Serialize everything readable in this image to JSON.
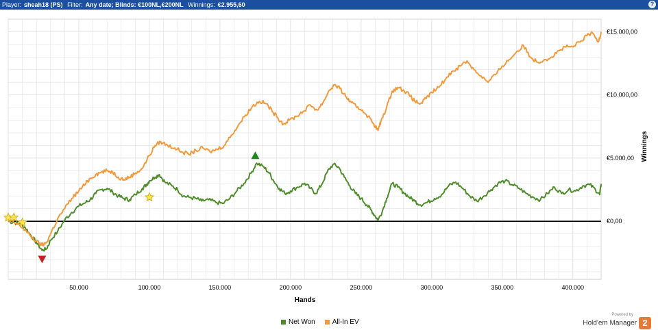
{
  "header": {
    "player_label": "Player:",
    "player_value": "sheah18 (PS)",
    "filter_label": "Filter:",
    "filter_value": "Any date; Blinds: €100NL,€200NL",
    "winnings_label": "Winnings:",
    "winnings_value": "€2.955,60",
    "help_icon": "?"
  },
  "legend": {
    "net_won": "Net Won",
    "all_in_ev": "All-In EV"
  },
  "brand": {
    "powered_by": "Powered by",
    "name": "Hold'em Manager",
    "logo_digit": "2"
  },
  "colors": {
    "net_won": "#4e8c2a",
    "all_in_ev": "#f3993b",
    "zero_line": "#000000",
    "grid": "#e2e2e2",
    "header": "#1c4fa0",
    "star": "#ffe44d",
    "up_marker": "#1a8a1a",
    "down_marker": "#cc2020"
  },
  "chart_data": {
    "type": "line",
    "xlabel": "Hands",
    "ylabel": "Winnings",
    "xlim": [
      0,
      420000
    ],
    "ylim": [
      -4600,
      16000
    ],
    "x_ticks": [
      50000,
      100000,
      150000,
      200000,
      250000,
      300000,
      350000,
      400000
    ],
    "x_tick_labels": [
      "50.000",
      "100.000",
      "150.000",
      "200.000",
      "250.000",
      "300.000",
      "350.000",
      "400.000"
    ],
    "y_ticks": [
      0,
      5000,
      10000,
      15000
    ],
    "y_tick_labels": [
      "€0,00",
      "€5.000,00",
      "€10.000,00",
      "€15.000,00"
    ],
    "grid": true,
    "legend_position": "bottom-center",
    "series": [
      {
        "name": "Net Won",
        "color": "#4e8c2a",
        "points": [
          [
            0,
            0
          ],
          [
            4000,
            -100
          ],
          [
            8000,
            -200
          ],
          [
            12000,
            -500
          ],
          [
            16000,
            -1100
          ],
          [
            20000,
            -1700
          ],
          [
            24000,
            -2300
          ],
          [
            27000,
            -2200
          ],
          [
            30000,
            -1500
          ],
          [
            35000,
            -800
          ],
          [
            40000,
            100
          ],
          [
            45000,
            700
          ],
          [
            50000,
            1200
          ],
          [
            55000,
            1500
          ],
          [
            58000,
            1700
          ],
          [
            62000,
            2200
          ],
          [
            66000,
            2500
          ],
          [
            70000,
            2600
          ],
          [
            74000,
            2300
          ],
          [
            78000,
            2000
          ],
          [
            82000,
            1800
          ],
          [
            86000,
            1700
          ],
          [
            90000,
            2100
          ],
          [
            95000,
            2600
          ],
          [
            98000,
            2900
          ],
          [
            100000,
            3200
          ],
          [
            104000,
            3500
          ],
          [
            107000,
            3700
          ],
          [
            111000,
            3100
          ],
          [
            116000,
            2800
          ],
          [
            120000,
            2500
          ],
          [
            124000,
            2000
          ],
          [
            128000,
            1900
          ],
          [
            133000,
            1800
          ],
          [
            137000,
            1600
          ],
          [
            142000,
            1700
          ],
          [
            147000,
            1500
          ],
          [
            152000,
            1400
          ],
          [
            157000,
            1800
          ],
          [
            162000,
            2400
          ],
          [
            167000,
            3000
          ],
          [
            172000,
            3800
          ],
          [
            176000,
            4600
          ],
          [
            181000,
            4300
          ],
          [
            185000,
            3800
          ],
          [
            188000,
            3200
          ],
          [
            192000,
            2600
          ],
          [
            196000,
            2200
          ],
          [
            200000,
            2400
          ],
          [
            205000,
            2700
          ],
          [
            210000,
            3000
          ],
          [
            214000,
            2600
          ],
          [
            218000,
            2200
          ],
          [
            222000,
            2900
          ],
          [
            226000,
            3900
          ],
          [
            230000,
            4500
          ],
          [
            234000,
            4300
          ],
          [
            238000,
            3500
          ],
          [
            242000,
            2800
          ],
          [
            246000,
            2200
          ],
          [
            250000,
            1800
          ],
          [
            254000,
            1300
          ],
          [
            257000,
            900
          ],
          [
            260000,
            400
          ],
          [
            262000,
            100
          ],
          [
            265000,
            800
          ],
          [
            268000,
            1800
          ],
          [
            272000,
            3000
          ],
          [
            276000,
            2700
          ],
          [
            280000,
            2300
          ],
          [
            284000,
            1900
          ],
          [
            288000,
            1600
          ],
          [
            292000,
            1300
          ],
          [
            297000,
            1500
          ],
          [
            302000,
            1800
          ],
          [
            307000,
            2100
          ],
          [
            312000,
            2800
          ],
          [
            317000,
            3100
          ],
          [
            322000,
            2600
          ],
          [
            327000,
            2000
          ],
          [
            332000,
            1600
          ],
          [
            337000,
            2000
          ],
          [
            342000,
            2500
          ],
          [
            347000,
            3000
          ],
          [
            352000,
            3200
          ],
          [
            357000,
            2900
          ],
          [
            362000,
            2600
          ],
          [
            367000,
            2200
          ],
          [
            372000,
            1900
          ],
          [
            377000,
            1700
          ],
          [
            382000,
            2200
          ],
          [
            387000,
            2700
          ],
          [
            392000,
            2200
          ],
          [
            397000,
            2500
          ],
          [
            402000,
            2400
          ],
          [
            407000,
            2800
          ],
          [
            412000,
            2900
          ],
          [
            416000,
            2500
          ],
          [
            419000,
            2100
          ],
          [
            420000,
            2956
          ]
        ]
      },
      {
        "name": "All-In EV",
        "color": "#f3993b",
        "points": [
          [
            0,
            0
          ],
          [
            4000,
            -100
          ],
          [
            8000,
            -300
          ],
          [
            12000,
            -700
          ],
          [
            16000,
            -1200
          ],
          [
            20000,
            -1600
          ],
          [
            24000,
            -1900
          ],
          [
            27000,
            -1700
          ],
          [
            30000,
            -1000
          ],
          [
            35000,
            200
          ],
          [
            40000,
            1000
          ],
          [
            45000,
            1800
          ],
          [
            50000,
            2400
          ],
          [
            55000,
            3000
          ],
          [
            58000,
            3400
          ],
          [
            62000,
            3700
          ],
          [
            66000,
            3900
          ],
          [
            70000,
            4000
          ],
          [
            74000,
            3900
          ],
          [
            78000,
            3500
          ],
          [
            82000,
            3300
          ],
          [
            86000,
            3500
          ],
          [
            90000,
            3800
          ],
          [
            95000,
            4200
          ],
          [
            100000,
            5200
          ],
          [
            104000,
            6000
          ],
          [
            108000,
            6300
          ],
          [
            113000,
            6000
          ],
          [
            118000,
            5800
          ],
          [
            123000,
            5500
          ],
          [
            128000,
            5300
          ],
          [
            133000,
            5600
          ],
          [
            138000,
            5800
          ],
          [
            143000,
            5500
          ],
          [
            148000,
            5700
          ],
          [
            153000,
            6000
          ],
          [
            158000,
            6800
          ],
          [
            163000,
            7600
          ],
          [
            168000,
            8400
          ],
          [
            173000,
            9100
          ],
          [
            178000,
            9500
          ],
          [
            183000,
            9300
          ],
          [
            187000,
            8700
          ],
          [
            191000,
            8200
          ],
          [
            195000,
            7700
          ],
          [
            199000,
            8000
          ],
          [
            204000,
            8300
          ],
          [
            209000,
            8700
          ],
          [
            214000,
            9200
          ],
          [
            219000,
            8800
          ],
          [
            223000,
            9400
          ],
          [
            227000,
            10300
          ],
          [
            231000,
            10800
          ],
          [
            235000,
            10500
          ],
          [
            239000,
            9900
          ],
          [
            243000,
            9400
          ],
          [
            247000,
            9000
          ],
          [
            251000,
            8800
          ],
          [
            255000,
            8300
          ],
          [
            259000,
            7700
          ],
          [
            262000,
            7200
          ],
          [
            264000,
            7900
          ],
          [
            268000,
            9000
          ],
          [
            272000,
            10300
          ],
          [
            276000,
            10600
          ],
          [
            280000,
            10400
          ],
          [
            284000,
            10000
          ],
          [
            288000,
            9500
          ],
          [
            292000,
            9300
          ],
          [
            296000,
            9700
          ],
          [
            300000,
            10200
          ],
          [
            305000,
            10600
          ],
          [
            310000,
            11300
          ],
          [
            315000,
            11900
          ],
          [
            320000,
            12300
          ],
          [
            325000,
            12700
          ],
          [
            330000,
            12000
          ],
          [
            335000,
            11500
          ],
          [
            340000,
            11000
          ],
          [
            345000,
            11600
          ],
          [
            350000,
            12300
          ],
          [
            355000,
            12800
          ],
          [
            360000,
            13400
          ],
          [
            365000,
            13900
          ],
          [
            370000,
            13000
          ],
          [
            375000,
            12600
          ],
          [
            380000,
            12800
          ],
          [
            385000,
            13000
          ],
          [
            390000,
            13500
          ],
          [
            395000,
            13800
          ],
          [
            400000,
            13800
          ],
          [
            405000,
            14200
          ],
          [
            410000,
            14700
          ],
          [
            414000,
            14900
          ],
          [
            418000,
            14200
          ],
          [
            420000,
            15000
          ]
        ]
      }
    ],
    "markers": [
      {
        "type": "star",
        "x": 0,
        "y": 300
      },
      {
        "type": "star",
        "x": 4000,
        "y": 300
      },
      {
        "type": "star",
        "x": 10000,
        "y": -100
      },
      {
        "type": "star",
        "x": 100000,
        "y": 1900
      },
      {
        "type": "triangle-up",
        "x": 175000,
        "y": 5200
      },
      {
        "type": "triangle-down",
        "x": 24000,
        "y": -3000
      }
    ]
  }
}
